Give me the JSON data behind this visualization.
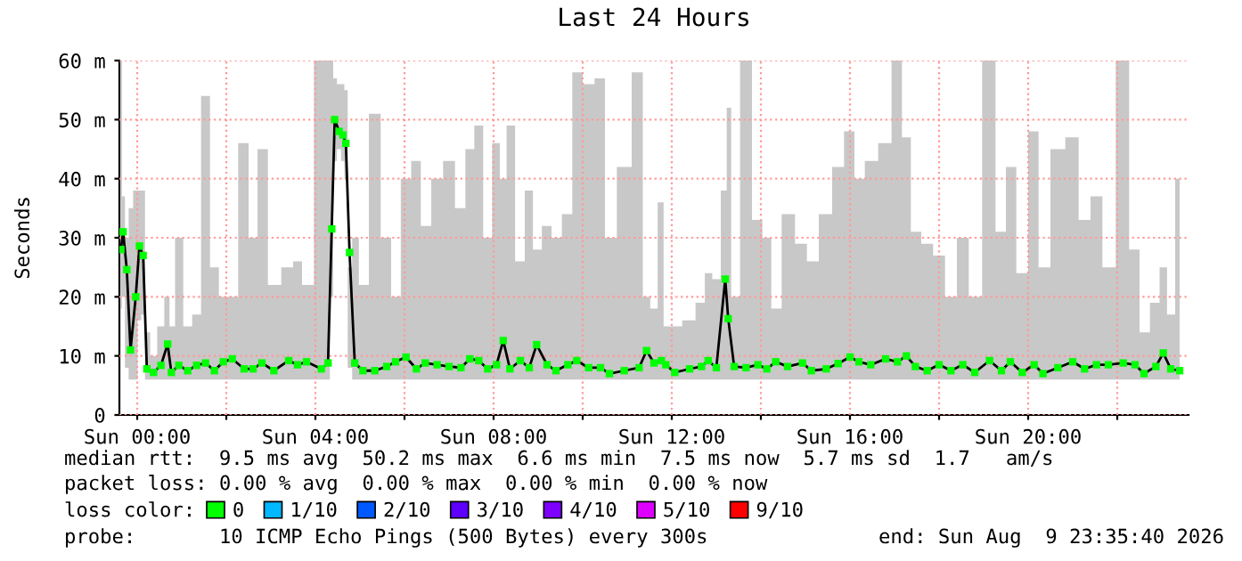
{
  "chart_data": {
    "type": "line",
    "title": "Last 24 Hours",
    "ylabel": "Seconds",
    "x": [
      "2026-08-08T23:38",
      "2026-08-08T23:41",
      "2026-08-08T23:46",
      "2026-08-08T23:51",
      "2026-08-08T23:58",
      "2026-08-09T00:03",
      "2026-08-09T00:08",
      "2026-08-09T00:13",
      "2026-08-09T00:22",
      "2026-08-09T00:32",
      "2026-08-09T00:41",
      "2026-08-09T00:46",
      "2026-08-09T00:56",
      "2026-08-09T01:08",
      "2026-08-09T01:20",
      "2026-08-09T01:32",
      "2026-08-09T01:44",
      "2026-08-09T01:56",
      "2026-08-09T02:08",
      "2026-08-09T02:24",
      "2026-08-09T02:36",
      "2026-08-09T02:48",
      "2026-08-09T03:04",
      "2026-08-09T03:24",
      "2026-08-09T03:36",
      "2026-08-09T03:48",
      "2026-08-09T04:08",
      "2026-08-09T04:17",
      "2026-08-09T04:22",
      "2026-08-09T04:26",
      "2026-08-09T04:32",
      "2026-08-09T04:37",
      "2026-08-09T04:41",
      "2026-08-09T04:46",
      "2026-08-09T04:53",
      "2026-08-09T05:04",
      "2026-08-09T05:20",
      "2026-08-09T05:36",
      "2026-08-09T05:48",
      "2026-08-09T06:02",
      "2026-08-09T06:16",
      "2026-08-09T06:28",
      "2026-08-09T06:44",
      "2026-08-09T07:00",
      "2026-08-09T07:16",
      "2026-08-09T07:28",
      "2026-08-09T07:40",
      "2026-08-09T07:52",
      "2026-08-09T08:04",
      "2026-08-09T08:13",
      "2026-08-09T08:22",
      "2026-08-09T08:36",
      "2026-08-09T08:48",
      "2026-08-09T08:58",
      "2026-08-09T09:12",
      "2026-08-09T09:24",
      "2026-08-09T09:40",
      "2026-08-09T09:52",
      "2026-08-09T10:08",
      "2026-08-09T10:24",
      "2026-08-09T10:36",
      "2026-08-09T10:56",
      "2026-08-09T11:16",
      "2026-08-09T11:26",
      "2026-08-09T11:36",
      "2026-08-09T11:46",
      "2026-08-09T11:52",
      "2026-08-09T12:04",
      "2026-08-09T12:24",
      "2026-08-09T12:40",
      "2026-08-09T12:49",
      "2026-08-09T13:00",
      "2026-08-09T13:12",
      "2026-08-09T13:16",
      "2026-08-09T13:24",
      "2026-08-09T13:40",
      "2026-08-09T13:56",
      "2026-08-09T14:08",
      "2026-08-09T14:20",
      "2026-08-09T14:36",
      "2026-08-09T14:56",
      "2026-08-09T15:08",
      "2026-08-09T15:28",
      "2026-08-09T15:44",
      "2026-08-09T16:00",
      "2026-08-09T16:12",
      "2026-08-09T16:28",
      "2026-08-09T16:48",
      "2026-08-09T17:04",
      "2026-08-09T17:16",
      "2026-08-09T17:28",
      "2026-08-09T17:44",
      "2026-08-09T18:00",
      "2026-08-09T18:16",
      "2026-08-09T18:32",
      "2026-08-09T18:48",
      "2026-08-09T19:08",
      "2026-08-09T19:24",
      "2026-08-09T19:36",
      "2026-08-09T19:52",
      "2026-08-09T20:08",
      "2026-08-09T20:20",
      "2026-08-09T20:40",
      "2026-08-09T21:00",
      "2026-08-09T21:16",
      "2026-08-09T21:32",
      "2026-08-09T21:48",
      "2026-08-09T22:08",
      "2026-08-09T22:24",
      "2026-08-09T22:36",
      "2026-08-09T22:52",
      "2026-08-09T23:02",
      "2026-08-09T23:12",
      "2026-08-09T23:24"
    ],
    "series": [
      {
        "name": "0",
        "color": "#00ff00",
        "values": [
          28,
          31,
          24.6,
          11,
          20,
          28.6,
          27,
          7.8,
          7.2,
          8.4,
          12,
          7.2,
          8.4,
          7.5,
          8.4,
          8.8,
          7.5,
          9,
          9.5,
          7.8,
          7.8,
          8.8,
          7.5,
          9.2,
          8.5,
          9,
          7.8,
          8.8,
          31.5,
          50,
          48,
          47.4,
          46,
          27.5,
          8.8,
          7.5,
          7.5,
          8.2,
          9,
          9.8,
          7.8,
          8.8,
          8.5,
          8.2,
          8,
          9.5,
          9.2,
          7.8,
          8.5,
          12.6,
          7.8,
          9.2,
          8,
          11.9,
          8.5,
          7.5,
          8.5,
          9.2,
          8,
          8,
          7,
          7.5,
          8,
          10.9,
          8.8,
          9.2,
          8.5,
          7.2,
          7.8,
          8.2,
          9.2,
          8,
          23,
          16.3,
          8.2,
          8,
          8.5,
          7.8,
          9,
          8.2,
          8.8,
          7.5,
          7.8,
          8.7,
          9.8,
          9,
          8.5,
          9.5,
          9,
          10,
          8.2,
          7.5,
          8.5,
          7.5,
          8.5,
          7.2,
          9.2,
          7.5,
          9,
          7.2,
          8.5,
          7,
          8,
          9,
          7.8,
          8.5,
          8.5,
          8.8,
          8.5,
          7,
          8.2,
          10.5,
          7.8,
          7.5
        ],
        "lower": [
          18,
          20,
          8,
          6,
          6,
          16,
          17,
          6,
          6,
          6,
          6,
          6,
          6,
          6,
          6,
          6,
          6,
          6,
          6,
          6,
          6,
          6,
          6,
          6,
          6,
          6,
          6,
          6,
          20,
          43,
          45,
          43,
          40,
          8,
          6,
          6,
          6,
          6,
          6,
          6,
          6,
          6,
          6,
          6,
          6,
          6,
          6,
          6,
          6,
          6,
          6,
          6,
          6,
          6,
          6,
          6,
          6,
          6,
          6,
          6,
          6,
          6,
          6,
          6,
          6,
          6,
          6,
          6,
          6,
          6,
          6,
          6,
          6,
          6,
          6,
          6,
          6,
          6,
          6,
          6,
          6,
          6,
          6,
          6,
          6,
          6,
          6,
          6,
          6,
          6,
          6,
          6,
          6,
          6,
          6,
          6,
          6,
          6,
          6,
          6,
          6,
          6,
          6,
          6,
          6,
          6,
          6,
          6,
          6,
          6,
          6,
          6,
          6,
          6
        ],
        "upper": [
          60,
          37,
          30,
          35,
          38,
          38,
          38,
          14,
          10,
          15,
          20,
          15,
          30,
          15,
          17,
          54,
          25,
          20,
          20,
          46,
          30,
          45,
          22,
          25,
          26,
          22,
          60,
          60,
          60,
          57,
          56,
          56,
          55,
          25,
          30,
          22,
          51,
          30,
          20,
          40,
          43,
          32,
          40,
          43,
          35,
          45,
          49,
          30,
          46,
          40,
          49,
          26,
          38,
          28,
          32,
          30,
          34,
          58,
          56,
          57,
          30,
          42,
          58,
          20,
          18,
          36,
          15,
          15,
          16,
          19,
          24,
          23,
          38,
          52,
          20,
          60,
          33,
          30,
          18,
          34,
          29,
          26,
          34,
          42,
          48,
          40,
          43,
          46,
          60,
          47,
          31,
          29,
          27,
          20,
          30,
          20,
          60,
          31,
          42,
          24,
          48,
          25,
          45,
          47,
          33,
          37,
          25,
          60,
          28,
          14,
          19,
          25,
          17,
          40
        ]
      },
      {
        "name": "1/10",
        "color": "#00b8ff",
        "values": [
          null,
          null,
          null,
          null,
          null,
          null,
          null,
          null,
          null,
          null,
          null,
          null,
          null,
          null,
          null,
          null,
          null,
          null,
          null,
          null,
          null,
          null,
          null,
          null,
          null,
          null,
          null,
          null,
          null,
          null,
          null,
          null,
          null,
          null,
          null,
          null,
          null,
          null,
          null,
          null,
          null,
          null,
          null,
          null,
          null,
          null,
          null,
          null,
          null,
          null,
          null,
          null,
          null,
          null,
          null,
          null,
          null,
          null,
          null,
          null,
          null,
          null,
          null,
          null,
          null,
          null,
          null,
          null,
          null,
          null,
          null,
          null,
          null,
          null,
          null,
          null,
          null,
          null,
          null,
          null,
          null,
          null,
          null,
          null,
          null,
          null,
          null,
          null,
          null,
          null,
          null,
          null,
          null,
          null,
          null,
          null,
          null,
          null,
          null,
          null,
          null,
          null,
          null,
          null,
          null,
          null,
          null,
          null,
          null,
          null,
          null,
          null,
          null,
          null
        ]
      },
      {
        "name": "2/10",
        "color": "#0059ff",
        "values": [
          null,
          null,
          null,
          null,
          null,
          null,
          null,
          null,
          null,
          null,
          null,
          null,
          null,
          null,
          null,
          null,
          null,
          null,
          null,
          null,
          null,
          null,
          null,
          null,
          null,
          null,
          null,
          null,
          null,
          null,
          null,
          null,
          null,
          null,
          null,
          null,
          null,
          null,
          null,
          null,
          null,
          null,
          null,
          null,
          null,
          null,
          null,
          null,
          null,
          null,
          null,
          null,
          null,
          null,
          null,
          null,
          null,
          null,
          null,
          null,
          null,
          null,
          null,
          null,
          null,
          null,
          null,
          null,
          null,
          null,
          null,
          null,
          null,
          null,
          null,
          null,
          null,
          null,
          null,
          null,
          null,
          null,
          null,
          null,
          null,
          null,
          null,
          null,
          null,
          null,
          null,
          null,
          null,
          null,
          null,
          null,
          null,
          null,
          null,
          null,
          null,
          null,
          null,
          null,
          null,
          null,
          null,
          null,
          null,
          null,
          null,
          null,
          null,
          null
        ]
      },
      {
        "name": "3/10",
        "color": "#5e00ff",
        "values": [
          null,
          null,
          null,
          null,
          null,
          null,
          null,
          null,
          null,
          null,
          null,
          null,
          null,
          null,
          null,
          null,
          null,
          null,
          null,
          null,
          null,
          null,
          null,
          null,
          null,
          null,
          null,
          null,
          null,
          null,
          null,
          null,
          null,
          null,
          null,
          null,
          null,
          null,
          null,
          null,
          null,
          null,
          null,
          null,
          null,
          null,
          null,
          null,
          null,
          null,
          null,
          null,
          null,
          null,
          null,
          null,
          null,
          null,
          null,
          null,
          null,
          null,
          null,
          null,
          null,
          null,
          null,
          null,
          null,
          null,
          null,
          null,
          null,
          null,
          null,
          null,
          null,
          null,
          null,
          null,
          null,
          null,
          null,
          null,
          null,
          null,
          null,
          null,
          null,
          null,
          null,
          null,
          null,
          null,
          null,
          null,
          null,
          null,
          null,
          null,
          null,
          null,
          null,
          null,
          null,
          null,
          null,
          null,
          null,
          null,
          null,
          null,
          null,
          null
        ]
      },
      {
        "name": "4/10",
        "color": "#7e00ff",
        "values": [
          null,
          null,
          null,
          null,
          null,
          null,
          null,
          null,
          null,
          null,
          null,
          null,
          null,
          null,
          null,
          null,
          null,
          null,
          null,
          null,
          null,
          null,
          null,
          null,
          null,
          null,
          null,
          null,
          null,
          null,
          null,
          null,
          null,
          null,
          null,
          null,
          null,
          null,
          null,
          null,
          null,
          null,
          null,
          null,
          null,
          null,
          null,
          null,
          null,
          null,
          null,
          null,
          null,
          null,
          null,
          null,
          null,
          null,
          null,
          null,
          null,
          null,
          null,
          null,
          null,
          null,
          null,
          null,
          null,
          null,
          null,
          null,
          null,
          null,
          null,
          null,
          null,
          null,
          null,
          null,
          null,
          null,
          null,
          null,
          null,
          null,
          null,
          null,
          null,
          null,
          null,
          null,
          null,
          null,
          null,
          null,
          null,
          null,
          null,
          null,
          null,
          null,
          null,
          null,
          null,
          null,
          null,
          null,
          null,
          null,
          null,
          null,
          null,
          null
        ]
      },
      {
        "name": "5/10",
        "color": "#dd00ff",
        "values": [
          null,
          null,
          null,
          null,
          null,
          null,
          null,
          null,
          null,
          null,
          null,
          null,
          null,
          null,
          null,
          null,
          null,
          null,
          null,
          null,
          null,
          null,
          null,
          null,
          null,
          null,
          null,
          null,
          null,
          null,
          null,
          null,
          null,
          null,
          null,
          null,
          null,
          null,
          null,
          null,
          null,
          null,
          null,
          null,
          null,
          null,
          null,
          null,
          null,
          null,
          null,
          null,
          null,
          null,
          null,
          null,
          null,
          null,
          null,
          null,
          null,
          null,
          null,
          null,
          null,
          null,
          null,
          null,
          null,
          null,
          null,
          null,
          null,
          null,
          null,
          null,
          null,
          null,
          null,
          null,
          null,
          null,
          null,
          null,
          null,
          null,
          null,
          null,
          null,
          null,
          null,
          null,
          null,
          null,
          null,
          null,
          null,
          null,
          null,
          null,
          null,
          null,
          null,
          null,
          null,
          null,
          null,
          null,
          null,
          null,
          null,
          null,
          null,
          null
        ]
      },
      {
        "name": "9/10",
        "color": "#ff0000",
        "values": [
          null,
          null,
          null,
          null,
          null,
          null,
          null,
          null,
          null,
          null,
          null,
          null,
          null,
          null,
          null,
          null,
          null,
          null,
          null,
          null,
          null,
          null,
          null,
          null,
          null,
          null,
          null,
          null,
          null,
          null,
          null,
          null,
          null,
          null,
          null,
          null,
          null,
          null,
          null,
          null,
          null,
          null,
          null,
          null,
          null,
          null,
          null,
          null,
          null,
          null,
          null,
          null,
          null,
          null,
          null,
          null,
          null,
          null,
          null,
          null,
          null,
          null,
          null,
          null,
          null,
          null,
          null,
          null,
          null,
          null,
          null,
          null,
          null,
          null,
          null,
          null,
          null,
          null,
          null,
          null,
          null,
          null,
          null,
          null,
          null,
          null,
          null,
          null,
          null,
          null,
          null,
          null,
          null,
          null,
          null,
          null,
          null,
          null,
          null,
          null,
          null,
          null,
          null,
          null,
          null,
          null,
          null,
          null,
          null,
          null,
          null,
          null,
          null,
          null
        ]
      }
    ],
    "xlim": [
      "2026-08-08T23:36",
      "2026-08-09T23:36"
    ],
    "xticks": [
      {
        "value": "2026-08-09T00:00",
        "label": "Sun 00:00"
      },
      {
        "value": "2026-08-09T02:00",
        "label": null
      },
      {
        "value": "2026-08-09T04:00",
        "label": "Sun 04:00"
      },
      {
        "value": "2026-08-09T06:00",
        "label": null
      },
      {
        "value": "2026-08-09T08:00",
        "label": "Sun 08:00"
      },
      {
        "value": "2026-08-09T10:00",
        "label": null
      },
      {
        "value": "2026-08-09T12:00",
        "label": "Sun 12:00"
      },
      {
        "value": "2026-08-09T14:00",
        "label": null
      },
      {
        "value": "2026-08-09T16:00",
        "label": "Sun 16:00"
      },
      {
        "value": "2026-08-09T18:00",
        "label": null
      },
      {
        "value": "2026-08-09T20:00",
        "label": "Sun 20:00"
      },
      {
        "value": "2026-08-09T22:00",
        "label": null
      }
    ],
    "ylim": [
      0,
      60
    ],
    "yticks": [
      0,
      {
        "value": 10,
        "label": "10 m"
      },
      {
        "value": 20,
        "label": "20 m"
      },
      {
        "value": 30,
        "label": "30 m"
      },
      {
        "value": 40,
        "label": "40 m"
      },
      {
        "value": 50,
        "label": "50 m"
      },
      {
        "value": 60,
        "label": "60 m"
      }
    ],
    "grid": true,
    "legend": "bottom",
    "marker": "square",
    "line_style": "solid",
    "annotations": [
      "median rtt:  9.5 ms avg  50.2 ms max  6.6 ms min  7.5 ms now  5.7 ms sd  1.7   am/s",
      "packet loss: 0.00 % avg  0.00 % max  0.00 % min  0.00 % now",
      "loss color:",
      "probe:       10 ICMP Echo Pings (500 Bytes) every 300s",
      "end: Sun Aug  9 23:35:40 2026"
    ]
  }
}
